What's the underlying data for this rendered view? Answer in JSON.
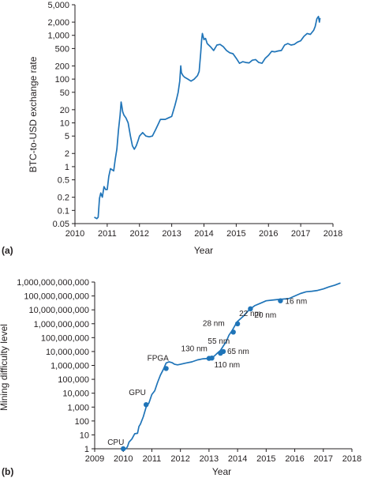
{
  "colors": {
    "series": "#1f74b8",
    "axis": "#231f20"
  },
  "chart_data": [
    {
      "panel_label": "(a)",
      "type": "line",
      "scale_y": "log",
      "xlabel": "Year",
      "ylabel": "BTC-to-USD exchange rate",
      "xlim": [
        2010,
        2018
      ],
      "ylim": [
        0.05,
        5000
      ],
      "x_ticks": [
        2010,
        2011,
        2012,
        2013,
        2014,
        2015,
        2016,
        2017,
        2018
      ],
      "y_ticks": [
        0.05,
        0.1,
        0.2,
        0.5,
        1,
        2,
        5,
        10,
        20,
        50,
        100,
        200,
        500,
        1000,
        2000,
        5000
      ],
      "y_tick_labels": [
        "0.05",
        "0.1",
        "0.2",
        "0.5",
        "1",
        "2",
        "5",
        "10",
        "20",
        "50",
        "100",
        "200",
        "500",
        "1,000",
        "2,000",
        "5,000"
      ],
      "series": [
        {
          "x": [
            2010.6,
            2010.68,
            2010.72,
            2010.76,
            2010.8,
            2010.85,
            2010.9,
            2010.95,
            2011.0,
            2011.05,
            2011.1,
            2011.15,
            2011.2,
            2011.25,
            2011.3,
            2011.35,
            2011.4,
            2011.43,
            2011.45,
            2011.48,
            2011.52,
            2011.58,
            2011.65,
            2011.72,
            2011.78,
            2011.84,
            2011.9,
            2011.96,
            2012.0,
            2012.1,
            2012.2,
            2012.3,
            2012.4,
            2012.5,
            2012.6,
            2012.65,
            2012.7,
            2012.8,
            2012.9,
            2013.0,
            2013.1,
            2013.15,
            2013.2,
            2013.25,
            2013.28,
            2013.3,
            2013.35,
            2013.4,
            2013.5,
            2013.6,
            2013.7,
            2013.8,
            2013.85,
            2013.9,
            2013.93,
            2013.95,
            2014.0,
            2014.05,
            2014.1,
            2014.2,
            2014.3,
            2014.4,
            2014.5,
            2014.6,
            2014.7,
            2014.8,
            2014.9,
            2015.0,
            2015.1,
            2015.2,
            2015.3,
            2015.4,
            2015.5,
            2015.6,
            2015.7,
            2015.8,
            2015.9,
            2016.0,
            2016.1,
            2016.2,
            2016.3,
            2016.4,
            2016.5,
            2016.6,
            2016.7,
            2016.8,
            2016.9,
            2017.0,
            2017.1,
            2017.2,
            2017.3,
            2017.4,
            2017.45,
            2017.5,
            2017.55,
            2017.58,
            2017.6
          ],
          "y": [
            0.07,
            0.065,
            0.07,
            0.19,
            0.25,
            0.2,
            0.35,
            0.3,
            0.3,
            0.6,
            0.9,
            0.85,
            0.8,
            1.5,
            2.5,
            7,
            15,
            30,
            25,
            18,
            15,
            13,
            10,
            5,
            3,
            2.5,
            3,
            4,
            5,
            6,
            5,
            4.8,
            5,
            7,
            10,
            12,
            12,
            12,
            13,
            14,
            25,
            35,
            50,
            90,
            200,
            140,
            120,
            110,
            100,
            90,
            100,
            120,
            150,
            400,
            800,
            1100,
            800,
            850,
            650,
            550,
            450,
            600,
            620,
            550,
            450,
            400,
            380,
            300,
            230,
            250,
            240,
            235,
            270,
            280,
            240,
            230,
            300,
            350,
            430,
            420,
            440,
            450,
            600,
            650,
            600,
            620,
            700,
            750,
            950,
            1100,
            1050,
            1300,
            1600,
            2400,
            2700,
            2000,
            2500
          ]
        }
      ]
    },
    {
      "panel_label": "(b)",
      "type": "line",
      "scale_y": "log",
      "xlabel": "Year",
      "ylabel": "Mining difficulty level",
      "xlim": [
        2009,
        2018
      ],
      "ylim": [
        1,
        1000000000000
      ],
      "x_ticks": [
        2009,
        2010,
        2011,
        2012,
        2013,
        2014,
        2015,
        2016,
        2017,
        2018
      ],
      "y_ticks": [
        1,
        10,
        100,
        1000,
        10000,
        100000,
        1000000,
        10000000,
        100000000,
        1000000000,
        10000000000,
        100000000000,
        1000000000000
      ],
      "y_tick_labels": [
        "1",
        "10",
        "100",
        "1,000",
        "10,000",
        "100,000",
        "1,000,000",
        "10,000,000",
        "100,000,000",
        "1,000,000,000",
        "10,000,000,000",
        "100,000,000,000",
        "1,000,000,000,000"
      ],
      "series": [
        {
          "x": [
            2010.0,
            2010.05,
            2010.1,
            2010.15,
            2010.2,
            2010.3,
            2010.4,
            2010.5,
            2010.55,
            2010.6,
            2010.7,
            2010.8,
            2010.9,
            2011.0,
            2011.1,
            2011.2,
            2011.3,
            2011.4,
            2011.5,
            2011.6,
            2011.7,
            2011.8,
            2011.9,
            2012.0,
            2012.2,
            2012.4,
            2012.6,
            2012.8,
            2013.0,
            2013.1,
            2013.2,
            2013.3,
            2013.4,
            2013.5,
            2013.6,
            2013.7,
            2013.8,
            2013.9,
            2014.0,
            2014.2,
            2014.4,
            2014.6,
            2014.8,
            2015.0,
            2015.2,
            2015.4,
            2015.6,
            2015.8,
            2016.0,
            2016.2,
            2016.4,
            2016.6,
            2016.8,
            2017.0,
            2017.2,
            2017.4,
            2017.6
          ],
          "y": [
            1,
            1,
            1,
            1.5,
            3,
            5,
            12,
            13,
            40,
            60,
            200,
            1000,
            2000,
            8000,
            15000,
            60000,
            200000,
            500000,
            1500000,
            1800000,
            1600000,
            1200000,
            1100000,
            1200000,
            1500000,
            1800000,
            2500000,
            3000000,
            3200000,
            3500000,
            5000000,
            8000000,
            12000000,
            25000000,
            50000000,
            150000000,
            300000000,
            700000000,
            1500000000,
            3500000000,
            10000000000,
            20000000000,
            30000000000,
            45000000000,
            50000000000,
            55000000000,
            60000000000,
            65000000000,
            100000000000,
            150000000000,
            200000000000,
            220000000000,
            250000000000,
            320000000000,
            450000000000,
            600000000000,
            850000000000
          ]
        }
      ],
      "milestones": [
        {
          "label": "CPU",
          "x": 2010.0,
          "y": 1
        },
        {
          "label": "GPU",
          "x": 2010.8,
          "y": 1500
        },
        {
          "label": "FPGA",
          "x": 2011.5,
          "y": 600000
        },
        {
          "label": "130 nm",
          "x": 2013.0,
          "y": 3200000
        },
        {
          "label": "110 nm",
          "x": 2013.1,
          "y": 3400000
        },
        {
          "label": "65 nm",
          "x": 2013.5,
          "y": 10000000
        },
        {
          "label": "55 nm",
          "x": 2013.4,
          "y": 7500000
        },
        {
          "label": "28 nm",
          "x": 2013.85,
          "y": 250000000
        },
        {
          "label": "22 nm",
          "x": 2014.0,
          "y": 1000000000
        },
        {
          "label": "20 nm",
          "x": 2014.45,
          "y": 12000000000
        },
        {
          "label": "16 nm",
          "x": 2015.5,
          "y": 45000000000
        }
      ]
    }
  ]
}
